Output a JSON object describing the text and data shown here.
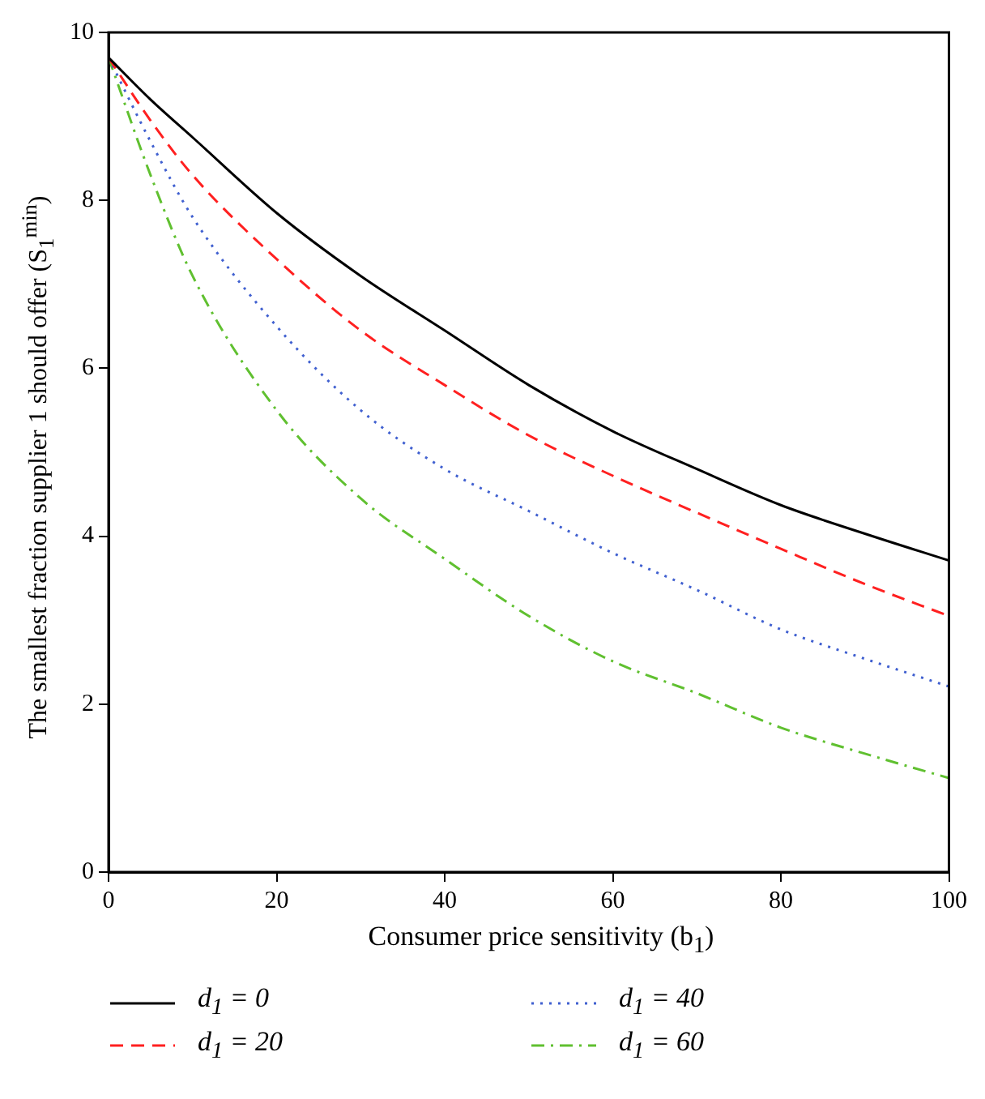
{
  "chart_data": {
    "type": "line",
    "xlabel": "Consumer price sensitivity (b$_{1}$)",
    "ylabel": "The smallest fraction supplier 1 should offer (S$_{1}$$^{min}$)",
    "x": [
      0,
      5,
      10,
      20,
      30,
      40,
      50,
      60,
      70,
      80,
      90,
      100
    ],
    "series": [
      {
        "name": "d$_{1}$ = 0",
        "color": "#000000",
        "line_style": "solid",
        "values": [
          9.7,
          9.2,
          8.75,
          7.85,
          7.1,
          6.45,
          5.8,
          5.25,
          4.8,
          4.37,
          4.03,
          3.71
        ]
      },
      {
        "name": "d$_{1}$ = 20",
        "color": "#ff2020",
        "line_style": "dashed",
        "values": [
          9.7,
          8.95,
          8.3,
          7.3,
          6.45,
          5.8,
          5.2,
          4.72,
          4.28,
          3.85,
          3.43,
          3.05
        ]
      },
      {
        "name": "d$_{1}$ = 40",
        "color": "#4060d0",
        "line_style": "dotted",
        "values": [
          9.7,
          8.7,
          7.8,
          6.5,
          5.5,
          4.8,
          4.3,
          3.8,
          3.36,
          2.89,
          2.54,
          2.21
        ]
      },
      {
        "name": "d$_{1}$ = 60",
        "color": "#60c030",
        "line_style": "dashdot",
        "values": [
          9.7,
          8.3,
          7.1,
          5.5,
          4.45,
          3.73,
          3.05,
          2.51,
          2.13,
          1.72,
          1.41,
          1.12
        ]
      }
    ],
    "xlim": [
      0,
      100
    ],
    "xticks": [
      0,
      20,
      40,
      60,
      80,
      100
    ],
    "ylim": [
      0,
      10
    ],
    "yticks": [
      0,
      2,
      4,
      6,
      8,
      10
    ],
    "legend": "bottom",
    "marker": "none"
  }
}
